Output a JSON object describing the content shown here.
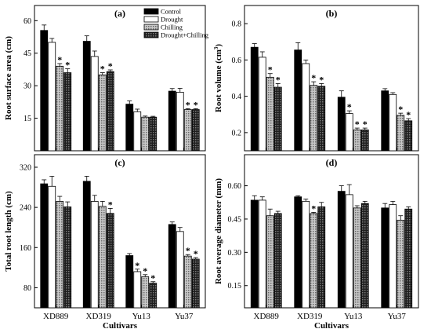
{
  "figure": {
    "legend": [
      "Control",
      "Drought",
      "Chilling",
      "Drought+Chilling"
    ]
  },
  "colors": {
    "Control": "#000000",
    "Drought": "#ffffff",
    "Chilling": "#a8a8a8",
    "Drought+Chilling": "#303030"
  },
  "chart_data": [
    {
      "type": "bar",
      "panel": "(a)",
      "ylabel": "Root surface area (cm)",
      "xlabel": "",
      "ylim": [
        0,
        67
      ],
      "yticks": [
        15,
        30,
        45,
        60
      ],
      "categories": [
        "XD889",
        "XD319",
        "Yu13",
        "Yu37"
      ],
      "series": [
        {
          "name": "Control",
          "values": [
            55.5,
            50.5,
            21.5,
            27.5
          ],
          "errors": [
            2.5,
            2.5,
            1.5,
            1.2
          ]
        },
        {
          "name": "Drought",
          "values": [
            50.0,
            43.5,
            18.0,
            27.0
          ],
          "errors": [
            1.8,
            2.5,
            1.2,
            1.8
          ]
        },
        {
          "name": "Chilling",
          "values": [
            39.0,
            35.0,
            15.5,
            19.0
          ],
          "errors": [
            1.2,
            1.0,
            0.5,
            0.4
          ]
        },
        {
          "name": "Drought+Chilling",
          "values": [
            36.0,
            36.5,
            15.5,
            19.0
          ],
          "errors": [
            1.8,
            0.8,
            0.4,
            0.4
          ]
        }
      ],
      "stars": [
        {
          "category": "XD889",
          "series": "Chilling"
        },
        {
          "category": "XD889",
          "series": "Drought+Chilling"
        },
        {
          "category": "XD319",
          "series": "Chilling"
        },
        {
          "category": "XD319",
          "series": "Drought+Chilling"
        },
        {
          "category": "Yu37",
          "series": "Chilling"
        },
        {
          "category": "Yu37",
          "series": "Drought+Chilling"
        }
      ]
    },
    {
      "type": "bar",
      "panel": "(b)",
      "ylabel": "Root volume (cm",
      "ylabel_sup": "3",
      "ylabel_end": ")",
      "xlabel": "",
      "ylim": [
        0.1,
        0.9
      ],
      "yticks": [
        0.2,
        0.4,
        0.6,
        0.8
      ],
      "categories": [
        "XD889",
        "XD319",
        "Yu13",
        "Yu37"
      ],
      "series": [
        {
          "name": "Control",
          "values": [
            0.67,
            0.655,
            0.395,
            0.43
          ],
          "errors": [
            0.02,
            0.04,
            0.035,
            0.012
          ]
        },
        {
          "name": "Drought",
          "values": [
            0.615,
            0.58,
            0.305,
            0.41
          ],
          "errors": [
            0.03,
            0.02,
            0.015,
            0.01
          ]
        },
        {
          "name": "Chilling",
          "values": [
            0.505,
            0.46,
            0.215,
            0.295
          ],
          "errors": [
            0.02,
            0.02,
            0.01,
            0.012
          ]
        },
        {
          "name": "Drought+Chilling",
          "values": [
            0.45,
            0.455,
            0.215,
            0.265
          ],
          "errors": [
            0.02,
            0.015,
            0.01,
            0.012
          ]
        }
      ],
      "stars": [
        {
          "category": "XD889",
          "series": "Chilling"
        },
        {
          "category": "XD889",
          "series": "Drought+Chilling"
        },
        {
          "category": "XD319",
          "series": "Chilling"
        },
        {
          "category": "XD319",
          "series": "Drought+Chilling"
        },
        {
          "category": "Yu13",
          "series": "Drought"
        },
        {
          "category": "Yu13",
          "series": "Chilling"
        },
        {
          "category": "Yu13",
          "series": "Drought+Chilling"
        },
        {
          "category": "Yu37",
          "series": "Chilling"
        },
        {
          "category": "Yu37",
          "series": "Drought+Chilling"
        }
      ]
    },
    {
      "type": "bar",
      "panel": "(c)",
      "ylabel": "Total root length (cm)",
      "xlabel": "Cultivars",
      "ylim": [
        40,
        345
      ],
      "yticks": [
        80,
        160,
        240,
        320
      ],
      "categories": [
        "XD889",
        "XD319",
        "Yu13",
        "Yu37"
      ],
      "series": [
        {
          "name": "Control",
          "values": [
            287,
            292,
            144,
            206
          ],
          "errors": [
            8,
            10,
            4,
            5
          ]
        },
        {
          "name": "Drought",
          "values": [
            282,
            252,
            112,
            192
          ],
          "errors": [
            20,
            12,
            5,
            8
          ]
        },
        {
          "name": "Chilling",
          "values": [
            252,
            242,
            102,
            143
          ],
          "errors": [
            10,
            10,
            4,
            3
          ]
        },
        {
          "name": "Drought+Chilling",
          "values": [
            241,
            228,
            89,
            137
          ],
          "errors": [
            10,
            10,
            3,
            3
          ]
        }
      ],
      "stars": [
        {
          "category": "XD319",
          "series": "Drought+Chilling"
        },
        {
          "category": "Yu13",
          "series": "Drought"
        },
        {
          "category": "Yu13",
          "series": "Chilling"
        },
        {
          "category": "Yu13",
          "series": "Drought+Chilling"
        },
        {
          "category": "Yu37",
          "series": "Chilling"
        },
        {
          "category": "Yu37",
          "series": "Drought+Chilling"
        }
      ]
    },
    {
      "type": "bar",
      "panel": "(d)",
      "ylabel": "Root average diameter (mm)",
      "xlabel": "Cultivars",
      "ylim": [
        0.05,
        0.74
      ],
      "yticks": [
        0.15,
        0.3,
        0.45,
        0.6
      ],
      "ytick_labels": [
        "0.15",
        "0.30",
        "0.45",
        "0.60"
      ],
      "categories": [
        "XD889",
        "XD319",
        "Yu13",
        "Yu37"
      ],
      "series": [
        {
          "name": "Control",
          "values": [
            0.535,
            0.55,
            0.575,
            0.5
          ],
          "errors": [
            0.02,
            0.005,
            0.025,
            0.02
          ]
        },
        {
          "name": "Drought",
          "values": [
            0.535,
            0.53,
            0.56,
            0.515
          ],
          "errors": [
            0.015,
            0.01,
            0.045,
            0.015
          ]
        },
        {
          "name": "Chilling",
          "values": [
            0.465,
            0.475,
            0.5,
            0.445
          ],
          "errors": [
            0.03,
            0.005,
            0.01,
            0.02
          ]
        },
        {
          "name": "Drought+Chilling",
          "values": [
            0.475,
            0.505,
            0.52,
            0.495
          ],
          "errors": [
            0.01,
            0.02,
            0.01,
            0.01
          ]
        }
      ],
      "stars": [
        {
          "category": "XD319",
          "series": "Chilling"
        }
      ]
    }
  ]
}
